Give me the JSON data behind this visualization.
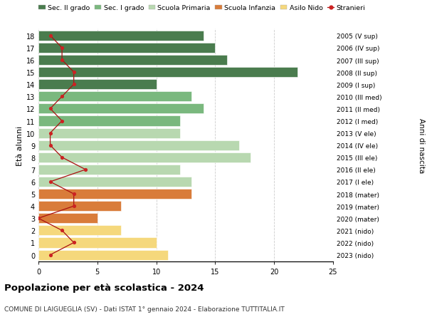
{
  "title": "Popolazione per età scolastica - 2024",
  "subtitle": "COMUNE DI LAIGUEGLIA (SV) - Dati ISTAT 1° gennaio 2024 - Elaborazione TUTTITALIA.IT",
  "xlabel_left": "Età alunni",
  "xlabel_right": "Anni di nascita",
  "ages": [
    18,
    17,
    16,
    15,
    14,
    13,
    12,
    11,
    10,
    9,
    8,
    7,
    6,
    5,
    4,
    3,
    2,
    1,
    0
  ],
  "right_labels": [
    "2005 (V sup)",
    "2006 (IV sup)",
    "2007 (III sup)",
    "2008 (II sup)",
    "2009 (I sup)",
    "2010 (III med)",
    "2011 (II med)",
    "2012 (I med)",
    "2013 (V ele)",
    "2014 (IV ele)",
    "2015 (III ele)",
    "2016 (II ele)",
    "2017 (I ele)",
    "2018 (mater)",
    "2019 (mater)",
    "2020 (mater)",
    "2021 (nido)",
    "2022 (nido)",
    "2023 (nido)"
  ],
  "bar_values": [
    14,
    15,
    16,
    22,
    10,
    13,
    14,
    12,
    12,
    17,
    18,
    12,
    13,
    13,
    7,
    5,
    7,
    10,
    11
  ],
  "bar_colors": [
    "#4a7c4e",
    "#4a7c4e",
    "#4a7c4e",
    "#4a7c4e",
    "#4a7c4e",
    "#7ab87e",
    "#7ab87e",
    "#7ab87e",
    "#b8d8b0",
    "#b8d8b0",
    "#b8d8b0",
    "#b8d8b0",
    "#b8d8b0",
    "#d97c3a",
    "#d97c3a",
    "#d97c3a",
    "#f5d87c",
    "#f5d87c",
    "#f5d87c"
  ],
  "stranieri_values": [
    1,
    2,
    2,
    3,
    3,
    2,
    1,
    2,
    1,
    1,
    2,
    4,
    1,
    3,
    3,
    0,
    2,
    3,
    1
  ],
  "legend_labels": [
    "Sec. II grado",
    "Sec. I grado",
    "Scuola Primaria",
    "Scuola Infanzia",
    "Asilo Nido",
    "Stranieri"
  ],
  "legend_colors": [
    "#4a7c4e",
    "#7ab87e",
    "#b8d8b0",
    "#d97c3a",
    "#f5d87c",
    "#cc2222"
  ],
  "xlim": [
    0,
    25
  ],
  "xticks": [
    0,
    5,
    10,
    15,
    20,
    25
  ],
  "bg_color": "#ffffff",
  "grid_color": "#cccccc",
  "bar_edge_color": "#ffffff",
  "stranieri_line_color": "#aa1111",
  "stranieri_marker_color": "#cc2222"
}
